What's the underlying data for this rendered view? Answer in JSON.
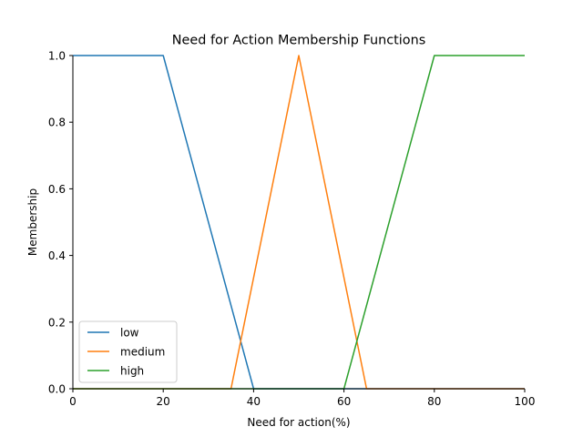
{
  "chart_data": {
    "type": "line",
    "title": "Need for Action Membership Functions",
    "xlabel": "Need for action(%)",
    "ylabel": "Membership",
    "xlim": [
      0,
      100
    ],
    "ylim": [
      0,
      1.0
    ],
    "xticks": [
      0,
      20,
      40,
      60,
      80,
      100
    ],
    "xtick_labels": [
      "0",
      "20",
      "40",
      "60",
      "80",
      "100"
    ],
    "yticks": [
      0.0,
      0.2,
      0.4,
      0.6,
      0.8,
      1.0
    ],
    "ytick_labels": [
      "0.0",
      "0.2",
      "0.4",
      "0.6",
      "0.8",
      "1.0"
    ],
    "grid": false,
    "legend_position": "lower-left",
    "series": [
      {
        "name": "low",
        "color": "#1f77b4",
        "x": [
          0,
          20,
          40,
          100
        ],
        "y": [
          1.0,
          1.0,
          0.0,
          0.0
        ]
      },
      {
        "name": "medium",
        "color": "#ff7f0e",
        "x": [
          0,
          35,
          50,
          65,
          100
        ],
        "y": [
          0.0,
          0.0,
          1.0,
          0.0,
          0.0
        ]
      },
      {
        "name": "high",
        "color": "#2ca02c",
        "x": [
          0,
          60,
          80,
          100
        ],
        "y": [
          0.0,
          0.0,
          1.0,
          1.0
        ]
      }
    ]
  }
}
